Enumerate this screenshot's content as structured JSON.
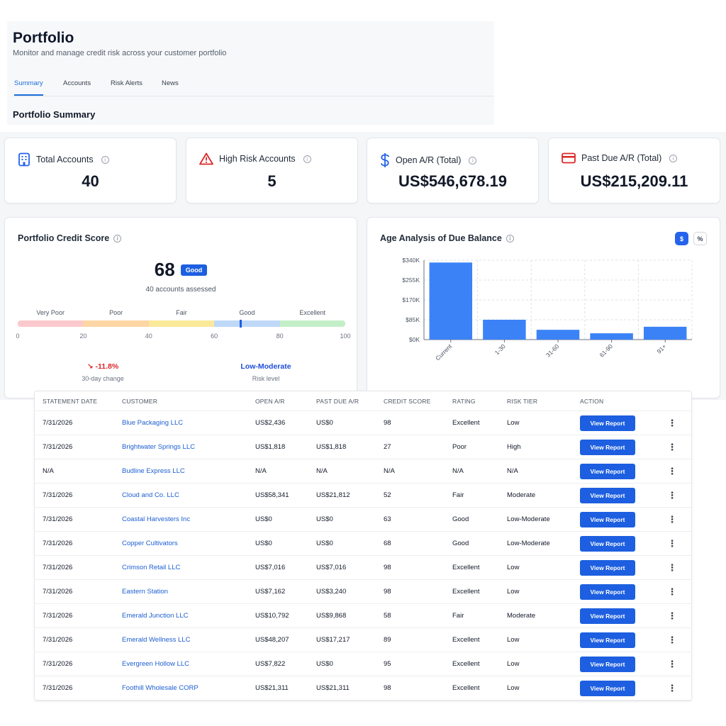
{
  "header": {
    "title": "Portfolio",
    "subtitle": "Monitor and manage credit risk across your customer portfolio",
    "tabs": [
      {
        "label": "Summary",
        "active": true
      },
      {
        "label": "Accounts",
        "active": false
      },
      {
        "label": "Risk Alerts",
        "active": false
      },
      {
        "label": "News",
        "active": false
      }
    ],
    "section_title": "Portfolio Summary"
  },
  "stats": [
    {
      "label": "Total Accounts",
      "value": "40",
      "icon": "building-icon"
    },
    {
      "label": "High Risk Accounts",
      "value": "5",
      "icon": "warning-triangle-icon"
    },
    {
      "label": "Open A/R (Total)",
      "value": "US$546,678.19",
      "icon": "dollar-icon"
    },
    {
      "label": "Past Due A/R (Total)",
      "value": "US$215,209.11",
      "icon": "credit-card-icon"
    }
  ],
  "credit_score": {
    "title": "Portfolio Credit Score",
    "score": "68",
    "score_value": 68,
    "badge": "Good",
    "assessed": "40 accounts assessed",
    "bands": [
      "Very Poor",
      "Poor",
      "Fair",
      "Good",
      "Excellent"
    ],
    "band_colors": [
      "#fbc9cd",
      "#fcd6a4",
      "#fbe99a",
      "#bfd8f7",
      "#c3efc8"
    ],
    "ticks": [
      "0",
      "20",
      "40",
      "60",
      "80",
      "100"
    ],
    "change": "-11.8%",
    "change_label": "30-day change",
    "risk_level": "Low-Moderate",
    "risk_label": "Risk level"
  },
  "age_analysis": {
    "title": "Age Analysis of Due Balance",
    "toggle_dollar": "$",
    "toggle_percent": "%"
  },
  "chart_data": {
    "type": "bar",
    "categories": [
      "Current",
      "1-30",
      "31-60",
      "61-90",
      "91+"
    ],
    "values": [
      330000,
      85000,
      42000,
      27000,
      55000
    ],
    "title": "Age Analysis of Due Balance",
    "xlabel": "",
    "ylabel": "",
    "ylim": [
      0,
      340000
    ],
    "yticks": [
      "$0K",
      "$85K",
      "$170K",
      "$255K",
      "$340K"
    ],
    "ytick_values": [
      0,
      85000,
      170000,
      255000,
      340000
    ],
    "grid": true,
    "bar_color": "#3b82f6"
  },
  "table": {
    "columns": [
      "STATEMENT DATE",
      "CUSTOMER",
      "OPEN A/R",
      "PAST DUE A/R",
      "CREDIT SCORE",
      "RATING",
      "RISK TIER",
      "ACTION"
    ],
    "action_label": "View Report",
    "more_glyph": "⋮",
    "rows": [
      [
        "7/31/2026",
        "Blue Packaging LLC",
        "US$2,436",
        "US$0",
        "98",
        "Excellent",
        "Low"
      ],
      [
        "7/31/2026",
        "Brightwater Springs LLC",
        "US$1,818",
        "US$1,818",
        "27",
        "Poor",
        "High"
      ],
      [
        "N/A",
        "Budline Express LLC",
        "N/A",
        "N/A",
        "N/A",
        "N/A",
        "N/A"
      ],
      [
        "7/31/2026",
        "Cloud and Co. LLC",
        "US$58,341",
        "US$21,812",
        "52",
        "Fair",
        "Moderate"
      ],
      [
        "7/31/2026",
        "Coastal Harvesters Inc",
        "US$0",
        "US$0",
        "63",
        "Good",
        "Low-Moderate"
      ],
      [
        "7/31/2026",
        "Copper Cultivators",
        "US$0",
        "US$0",
        "68",
        "Good",
        "Low-Moderate"
      ],
      [
        "7/31/2026",
        "Crimson Retail LLC",
        "US$7,016",
        "US$7,016",
        "98",
        "Excellent",
        "Low"
      ],
      [
        "7/31/2026",
        "Eastern Station",
        "US$7,162",
        "US$3,240",
        "98",
        "Excellent",
        "Low"
      ],
      [
        "7/31/2026",
        "Emerald Junction LLC",
        "US$10,792",
        "US$9,868",
        "58",
        "Fair",
        "Moderate"
      ],
      [
        "7/31/2026",
        "Emerald Wellness LLC",
        "US$48,207",
        "US$17,217",
        "89",
        "Excellent",
        "Low"
      ],
      [
        "7/31/2026",
        "Evergreen Hollow LLC",
        "US$7,822",
        "US$0",
        "95",
        "Excellent",
        "Low"
      ],
      [
        "7/31/2026",
        "Foothill Wholesale CORP",
        "US$21,311",
        "US$21,311",
        "98",
        "Excellent",
        "Low"
      ]
    ]
  }
}
